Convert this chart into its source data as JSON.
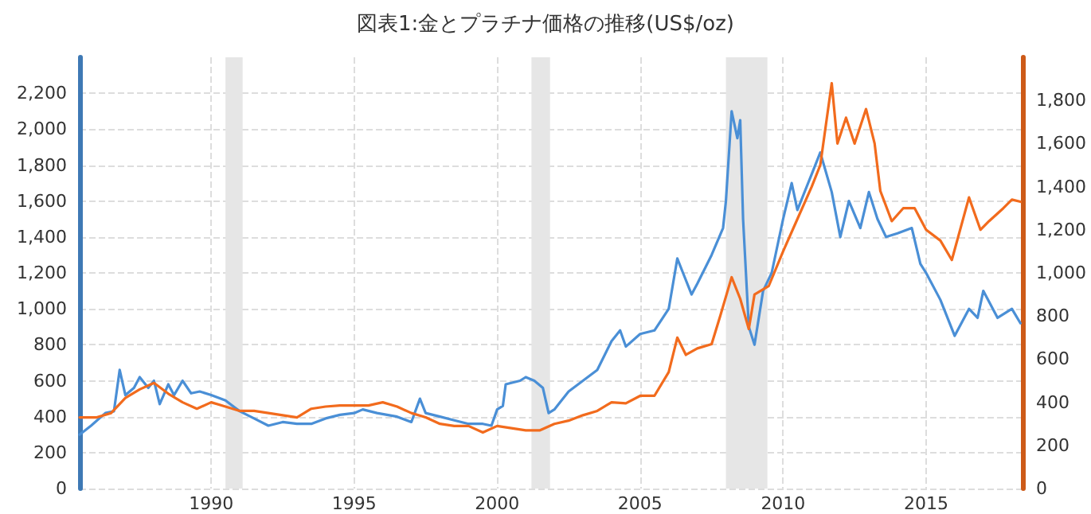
{
  "chart_data": {
    "type": "line",
    "title": "図表1:金とプラチナ価格の推移(US$/oz)",
    "xlim": [
      1985.4,
      2018.4
    ],
    "xticks": [
      1990,
      1995,
      2000,
      2005,
      2010,
      2015
    ],
    "ylim": [
      0,
      2400
    ],
    "yticks": [
      0,
      200,
      400,
      600,
      800,
      {
        "value": 1000,
        "label": "1,000"
      },
      {
        "value": 1200,
        "label": "1,200"
      },
      {
        "value": 1400,
        "label": "1,400"
      },
      {
        "value": 1600,
        "label": "1,600"
      },
      {
        "value": 1800,
        "label": "1,800"
      },
      {
        "value": 2000,
        "label": "2,000"
      },
      {
        "value": 2200,
        "label": "2,200"
      }
    ],
    "y2lim": [
      0,
      2000
    ],
    "y2ticks": [
      0,
      200,
      400,
      600,
      800,
      {
        "value": 1000,
        "label": "1,000"
      },
      {
        "value": 1200,
        "label": "1,200"
      },
      {
        "value": 1400,
        "label": "1,400"
      },
      {
        "value": 1600,
        "label": "1,600"
      },
      {
        "value": 1800,
        "label": "1,800"
      }
    ],
    "grid": true,
    "marker": "none",
    "line_style": "solid",
    "bands": [
      {
        "axis": "x",
        "from": 1990.5,
        "to": 1991.1,
        "color": "#e6e6e6"
      },
      {
        "axis": "x",
        "from": 2001.2,
        "to": 2001.85,
        "color": "#e6e6e6"
      },
      {
        "axis": "x",
        "from": 2008.0,
        "to": 2009.45,
        "color": "#e6e6e6"
      }
    ],
    "series": [
      {
        "color": "#4a8fd6",
        "x": [
          1985.4,
          1985.8,
          1986.3,
          1986.6,
          1986.8,
          1987.0,
          1987.3,
          1987.5,
          1987.8,
          1988.0,
          1988.2,
          1988.5,
          1988.7,
          1989.0,
          1989.3,
          1989.6,
          1990.0,
          1990.5,
          1991.0,
          1991.5,
          1992.0,
          1992.5,
          1993.0,
          1993.5,
          1994.0,
          1994.5,
          1995.0,
          1995.3,
          1995.8,
          1996.5,
          1997.0,
          1997.3,
          1997.5,
          1998.0,
          1998.5,
          1999.0,
          1999.5,
          1999.8,
          2000.0,
          2000.2,
          2000.3,
          2000.8,
          2001.0,
          2001.3,
          2001.6,
          2001.8,
          2002.0,
          2002.5,
          2003.0,
          2003.5,
          2004.0,
          2004.3,
          2004.5,
          2005.0,
          2005.5,
          2006.0,
          2006.3,
          2006.5,
          2006.8,
          2007.0,
          2007.5,
          2007.9,
          2008.0,
          2008.2,
          2008.4,
          2008.5,
          2008.6,
          2008.8,
          2009.0,
          2009.3,
          2009.6,
          2010.0,
          2010.3,
          2010.5,
          2011.0,
          2011.3,
          2011.7,
          2012.0,
          2012.3,
          2012.7,
          2013.0,
          2013.3,
          2013.6,
          2014.0,
          2014.5,
          2014.8,
          2015.0,
          2015.5,
          2016.0,
          2016.5,
          2016.8,
          2017.0,
          2017.5,
          2018.0,
          2018.3
        ],
        "values": [
          300,
          350,
          420,
          430,
          660,
          520,
          560,
          620,
          560,
          600,
          470,
          580,
          520,
          600,
          530,
          540,
          520,
          490,
          430,
          390,
          350,
          370,
          360,
          360,
          390,
          410,
          420,
          440,
          420,
          400,
          370,
          500,
          420,
          400,
          380,
          360,
          360,
          350,
          440,
          460,
          580,
          600,
          620,
          600,
          560,
          420,
          440,
          540,
          600,
          660,
          820,
          880,
          790,
          860,
          880,
          1000,
          1280,
          1200,
          1080,
          1140,
          1300,
          1450,
          1600,
          2100,
          1950,
          2050,
          1500,
          900,
          800,
          1100,
          1200,
          1500,
          1700,
          1550,
          1750,
          1870,
          1650,
          1400,
          1600,
          1450,
          1650,
          1500,
          1400,
          1420,
          1450,
          1250,
          1200,
          1050,
          850,
          1000,
          950,
          1100,
          950,
          1000,
          920
        ]
      },
      {
        "color": "#f26b1d",
        "axis": "y2",
        "x": [
          1985.4,
          1986.0,
          1986.5,
          1987.0,
          1987.5,
          1988.0,
          1988.5,
          1989.0,
          1989.5,
          1990.0,
          1990.5,
          1991.0,
          1991.5,
          1992.0,
          1992.5,
          1993.0,
          1993.5,
          1994.0,
          1994.5,
          1995.0,
          1995.5,
          1996.0,
          1996.5,
          1997.0,
          1997.5,
          1998.0,
          1998.5,
          1999.0,
          1999.5,
          2000.0,
          2000.5,
          2001.0,
          2001.5,
          2002.0,
          2002.5,
          2003.0,
          2003.5,
          2004.0,
          2004.5,
          2005.0,
          2005.5,
          2006.0,
          2006.3,
          2006.6,
          2007.0,
          2007.5,
          2007.8,
          2008.2,
          2008.5,
          2008.8,
          2009.0,
          2009.5,
          2010.0,
          2010.5,
          2011.0,
          2011.3,
          2011.7,
          2011.9,
          2012.2,
          2012.5,
          2012.9,
          2013.2,
          2013.4,
          2013.8,
          2014.2,
          2014.6,
          2015.0,
          2015.5,
          2015.9,
          2016.5,
          2016.9,
          2017.2,
          2017.7,
          2018.0,
          2018.3
        ],
        "values": [
          330,
          330,
          350,
          420,
          460,
          490,
          440,
          400,
          370,
          400,
          380,
          360,
          360,
          350,
          340,
          330,
          370,
          380,
          385,
          385,
          385,
          400,
          380,
          350,
          330,
          300,
          290,
          290,
          260,
          290,
          280,
          270,
          270,
          300,
          315,
          340,
          360,
          400,
          395,
          430,
          430,
          540,
          700,
          620,
          650,
          670,
          800,
          980,
          880,
          740,
          900,
          940,
          1100,
          1250,
          1400,
          1500,
          1880,
          1600,
          1720,
          1600,
          1760,
          1600,
          1380,
          1240,
          1300,
          1300,
          1200,
          1150,
          1060,
          1350,
          1200,
          1240,
          1300,
          1340,
          1330
        ]
      }
    ]
  }
}
